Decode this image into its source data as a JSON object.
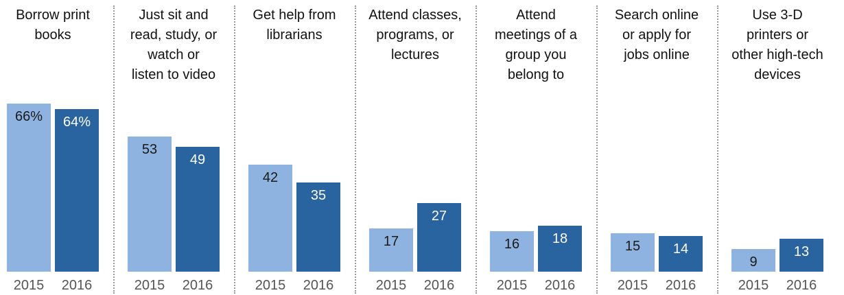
{
  "chart_data": {
    "type": "bar",
    "categories": [
      [
        "Borrow print",
        "books"
      ],
      [
        "Just sit and",
        "read, study, or",
        "watch or",
        "listen to video"
      ],
      [
        "Get help from",
        "librarians"
      ],
      [
        "Attend classes,",
        "programs, or",
        "lectures"
      ],
      [
        "Attend",
        "meetings of a",
        "group you",
        "belong to"
      ],
      [
        "Search online",
        "or apply for",
        "jobs online"
      ],
      [
        "Use 3-D",
        "printers or",
        "other high-tech",
        "devices"
      ]
    ],
    "series": [
      {
        "name": "2015",
        "color": "#8fb3e1",
        "label_color": "#1a1a1a",
        "values": [
          66,
          53,
          42,
          17,
          16,
          15,
          9
        ],
        "value_labels": [
          "66%",
          "53",
          "42",
          "17",
          "16",
          "15",
          "9"
        ]
      },
      {
        "name": "2016",
        "color": "#2a64a0",
        "label_color": "#ffffff",
        "values": [
          64,
          49,
          35,
          27,
          18,
          14,
          13
        ],
        "value_labels": [
          "64%",
          "49",
          "35",
          "27",
          "18",
          "14",
          "13"
        ]
      }
    ]
  }
}
